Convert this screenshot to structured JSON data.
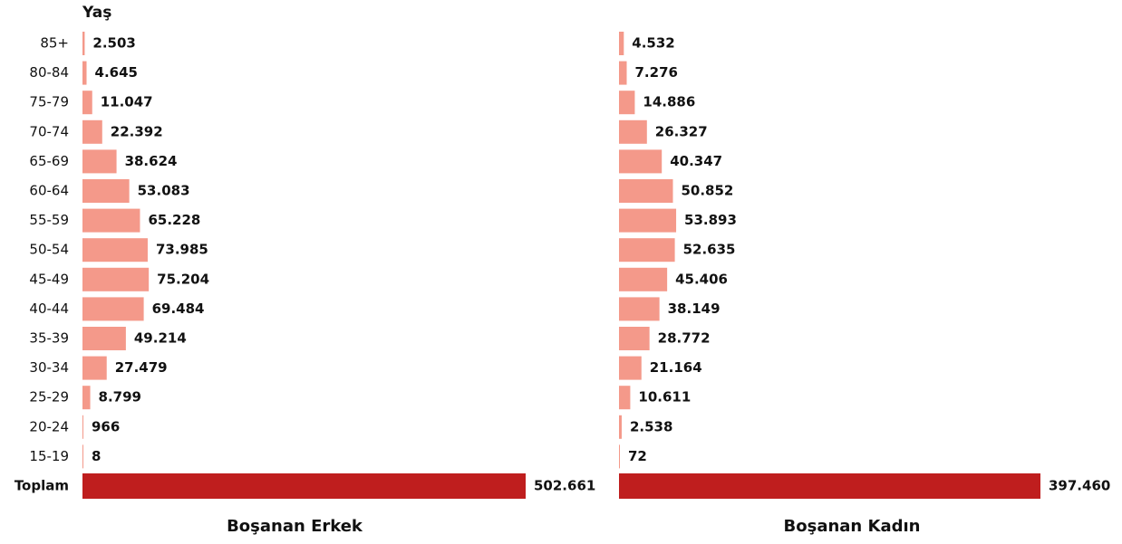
{
  "chart_data": {
    "type": "bar",
    "orientation": "horizontal",
    "ylabel": "Yaş",
    "categories": [
      "85+",
      "80-84",
      "75-79",
      "70-74",
      "65-69",
      "60-64",
      "55-59",
      "50-54",
      "45-49",
      "40-44",
      "35-39",
      "30-34",
      "25-29",
      "20-24",
      "15-19",
      "Toplam"
    ],
    "series": [
      {
        "name": "Boşanan Erkek",
        "values": [
          2503,
          4645,
          11047,
          22392,
          38624,
          53083,
          65228,
          73985,
          75204,
          69484,
          49214,
          27479,
          8799,
          966,
          8,
          502661
        ],
        "value_labels": [
          "2.503",
          "4.645",
          "11.047",
          "22.392",
          "38.624",
          "53.083",
          "65.228",
          "73.985",
          "75.204",
          "69.484",
          "49.214",
          "27.479",
          "8.799",
          "966",
          "8",
          "502.661"
        ],
        "colors": [
          "#f4998a",
          "#f4998a",
          "#f4998a",
          "#f4998a",
          "#f4998a",
          "#f4998a",
          "#f4998a",
          "#f4998a",
          "#f4998a",
          "#f4998a",
          "#f4998a",
          "#f4998a",
          "#f4998a",
          "#f4998a",
          "#f4998a",
          "#bf1e1e"
        ]
      },
      {
        "name": "Boşanan Kadın",
        "values": [
          4532,
          7276,
          14886,
          26327,
          40347,
          50852,
          53893,
          52635,
          45406,
          38149,
          28772,
          21164,
          10611,
          2538,
          72,
          397460
        ],
        "value_labels": [
          "4.532",
          "7.276",
          "14.886",
          "26.327",
          "40.347",
          "50.852",
          "53.893",
          "52.635",
          "45.406",
          "38.149",
          "28.772",
          "21.164",
          "10.611",
          "2.538",
          "72",
          "397.460"
        ],
        "colors": [
          "#f4998a",
          "#f4998a",
          "#f4998a",
          "#f4998a",
          "#f4998a",
          "#f4998a",
          "#f4998a",
          "#f4998a",
          "#f4998a",
          "#f4998a",
          "#f4998a",
          "#f4998a",
          "#f4998a",
          "#f4998a",
          "#f4998a",
          "#bf1e1e"
        ]
      }
    ]
  }
}
